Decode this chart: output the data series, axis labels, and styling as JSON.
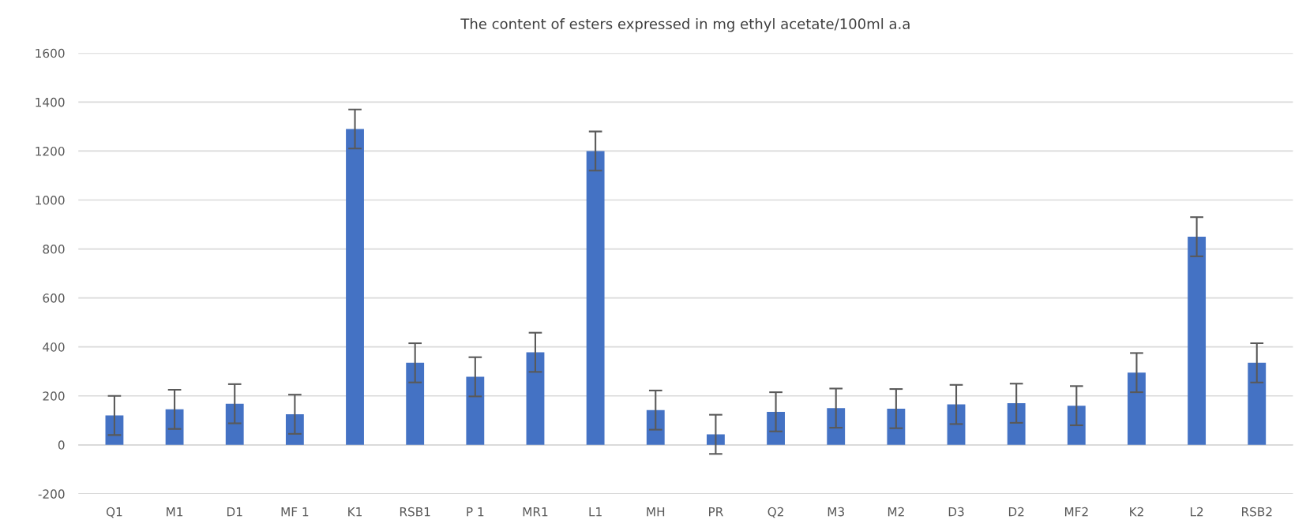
{
  "chart_data": {
    "type": "bar",
    "title": "The content of esters expressed in mg ethyl acetate/100ml a.a",
    "categories": [
      "Q1",
      "M1",
      "D1",
      "MF 1",
      "K1",
      "RSB1",
      "P 1",
      "MR1",
      "L1",
      "MH",
      "PR",
      "Q2",
      "M3",
      "M2",
      "D3",
      "D2",
      "MF2",
      "K2",
      "L2",
      "RSB2"
    ],
    "values": [
      120,
      145,
      168,
      125,
      1290,
      335,
      278,
      378,
      1200,
      142,
      43,
      135,
      150,
      148,
      165,
      170,
      160,
      295,
      850,
      335
    ],
    "errors": [
      80,
      80,
      80,
      80,
      80,
      80,
      80,
      80,
      80,
      80,
      80,
      80,
      80,
      80,
      80,
      80,
      80,
      80,
      80,
      80
    ],
    "color": "#4472c4",
    "ylim": [
      -200,
      1600
    ],
    "yticks": [
      -200,
      0,
      200,
      400,
      600,
      800,
      1000,
      1200,
      1400,
      1600
    ],
    "grid": "y",
    "legend": false
  }
}
